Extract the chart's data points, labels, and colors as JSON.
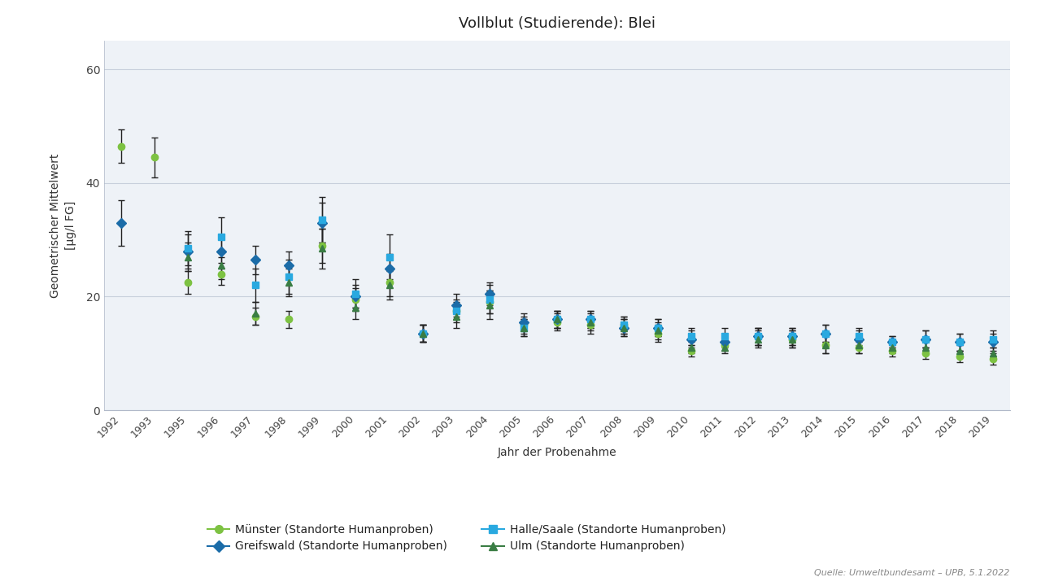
{
  "title": "Vollblut (Studierende): Blei",
  "xlabel": "Jahr der Probenahme",
  "ylabel": "Geometrischer Mittelwert\n[µg/l FG]",
  "ylim": [
    0,
    65
  ],
  "yticks": [
    0,
    20,
    40,
    60
  ],
  "background_color": "#ffffff",
  "plot_bg_color": "#eef2f7",
  "series": [
    {
      "name": "Münster (Standorte Humanproben)",
      "color": "#7dc242",
      "marker": "o",
      "markersize": 6,
      "years": [
        1992,
        1993,
        1995,
        1996,
        1997,
        1998,
        1999,
        2000,
        2001,
        2002,
        2003,
        2004,
        2005,
        2006,
        2007,
        2008,
        2009,
        2010,
        2011,
        2012,
        2013,
        2014,
        2015,
        2016,
        2017,
        2018,
        2019
      ],
      "values": [
        46.5,
        44.5,
        22.5,
        24.0,
        16.5,
        16.0,
        29.0,
        19.5,
        22.5,
        13.5,
        17.5,
        19.0,
        15.0,
        15.5,
        15.0,
        15.0,
        13.5,
        10.5,
        11.5,
        13.0,
        12.5,
        11.5,
        11.0,
        10.5,
        10.0,
        9.5,
        9.0
      ],
      "yerr": [
        3.0,
        3.5,
        2.0,
        2.0,
        1.5,
        1.5,
        3.0,
        2.0,
        2.5,
        1.5,
        1.5,
        2.0,
        1.5,
        1.5,
        1.5,
        1.5,
        1.5,
        1.0,
        1.0,
        1.5,
        1.5,
        1.5,
        1.0,
        1.0,
        1.0,
        1.0,
        1.0
      ]
    },
    {
      "name": "Greifswald (Standorte Humanproben)",
      "color": "#1b6ca8",
      "marker": "D",
      "markersize": 6,
      "years": [
        1992,
        1995,
        1996,
        1997,
        1998,
        1999,
        2000,
        2001,
        2002,
        2003,
        2004,
        2005,
        2006,
        2007,
        2008,
        2009,
        2010,
        2011,
        2012,
        2013,
        2014,
        2015,
        2016,
        2017,
        2018,
        2019
      ],
      "values": [
        33.0,
        28.0,
        28.0,
        26.5,
        25.5,
        33.0,
        20.0,
        25.0,
        13.5,
        18.5,
        20.5,
        15.5,
        16.0,
        16.0,
        14.5,
        14.5,
        12.5,
        12.0,
        13.0,
        13.0,
        13.5,
        12.5,
        12.0,
        12.5,
        12.0,
        12.0
      ],
      "yerr": [
        4.0,
        3.0,
        3.0,
        2.5,
        2.5,
        3.5,
        2.0,
        2.5,
        1.5,
        2.0,
        2.0,
        1.5,
        1.5,
        1.5,
        1.5,
        1.5,
        1.5,
        1.0,
        1.5,
        1.5,
        1.5,
        1.5,
        1.0,
        1.5,
        1.5,
        1.5
      ]
    },
    {
      "name": "Halle/Saale (Standorte Humanproben)",
      "color": "#29a9e0",
      "marker": "s",
      "markersize": 6,
      "years": [
        1995,
        1996,
        1997,
        1998,
        1999,
        2000,
        2001,
        2002,
        2003,
        2004,
        2005,
        2006,
        2007,
        2008,
        2009,
        2010,
        2011,
        2012,
        2013,
        2014,
        2015,
        2016,
        2017,
        2018,
        2019
      ],
      "values": [
        28.5,
        30.5,
        22.0,
        23.5,
        33.5,
        20.5,
        27.0,
        13.5,
        17.5,
        19.5,
        14.5,
        16.0,
        16.0,
        15.0,
        14.5,
        13.0,
        13.0,
        13.0,
        13.0,
        13.5,
        13.0,
        12.0,
        12.5,
        12.0,
        12.5
      ],
      "yerr": [
        3.0,
        3.5,
        3.0,
        3.0,
        4.0,
        2.5,
        4.0,
        1.5,
        2.0,
        2.5,
        1.5,
        1.5,
        1.5,
        1.5,
        1.5,
        1.5,
        1.5,
        1.5,
        1.5,
        1.5,
        1.5,
        1.0,
        1.5,
        1.5,
        1.5
      ]
    },
    {
      "name": "Ulm (Standorte Humanproben)",
      "color": "#3a7d44",
      "marker": "^",
      "markersize": 6,
      "years": [
        1995,
        1996,
        1997,
        1998,
        1999,
        2000,
        2001,
        2002,
        2003,
        2004,
        2005,
        2006,
        2007,
        2008,
        2009,
        2010,
        2011,
        2012,
        2013,
        2014,
        2015,
        2016,
        2017,
        2018,
        2019
      ],
      "values": [
        27.0,
        25.5,
        17.0,
        22.5,
        28.5,
        18.0,
        22.0,
        13.5,
        16.5,
        18.5,
        14.5,
        16.0,
        15.5,
        14.5,
        14.0,
        11.0,
        11.0,
        12.5,
        12.5,
        11.5,
        11.5,
        11.0,
        11.0,
        10.5,
        10.0
      ],
      "yerr": [
        2.5,
        2.5,
        2.0,
        2.5,
        3.5,
        2.0,
        2.5,
        1.5,
        2.0,
        2.5,
        1.5,
        1.5,
        1.5,
        1.5,
        1.5,
        1.0,
        1.0,
        1.5,
        1.5,
        1.5,
        1.5,
        1.0,
        1.0,
        1.0,
        1.0
      ]
    }
  ],
  "all_years": [
    1992,
    1993,
    1995,
    1996,
    1997,
    1998,
    1999,
    2000,
    2001,
    2002,
    2003,
    2004,
    2005,
    2006,
    2007,
    2008,
    2009,
    2010,
    2011,
    2012,
    2013,
    2014,
    2015,
    2016,
    2017,
    2018,
    2019
  ],
  "source_text": "Quelle: Umweltbundesamt – UPB, 5.1.2022"
}
